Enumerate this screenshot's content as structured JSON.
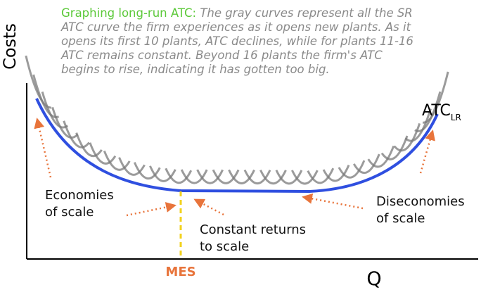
{
  "header": {
    "title": "Graphing long-run ATC:",
    "lines": [
      "The gray curves represent all the SR",
      "ATC curve the firm experiences as it opens new plants. As it",
      "opens its first 10 plants, ATC declines, while for plants 11-16",
      "ATC remains constant. Beyond 16 plants the firm's ATC",
      "begins to rise, indicating it has gotten too big."
    ]
  },
  "axes": {
    "y_label": "Costs",
    "x_label": "Q"
  },
  "curve": {
    "label": "ATC",
    "subscript": "LR"
  },
  "labels": {
    "economies": [
      "Economies",
      "of scale"
    ],
    "constant": [
      "Constant returns",
      "to scale"
    ],
    "diseconomies": [
      "Diseconomies",
      "of scale"
    ],
    "mes": "MES"
  }
}
